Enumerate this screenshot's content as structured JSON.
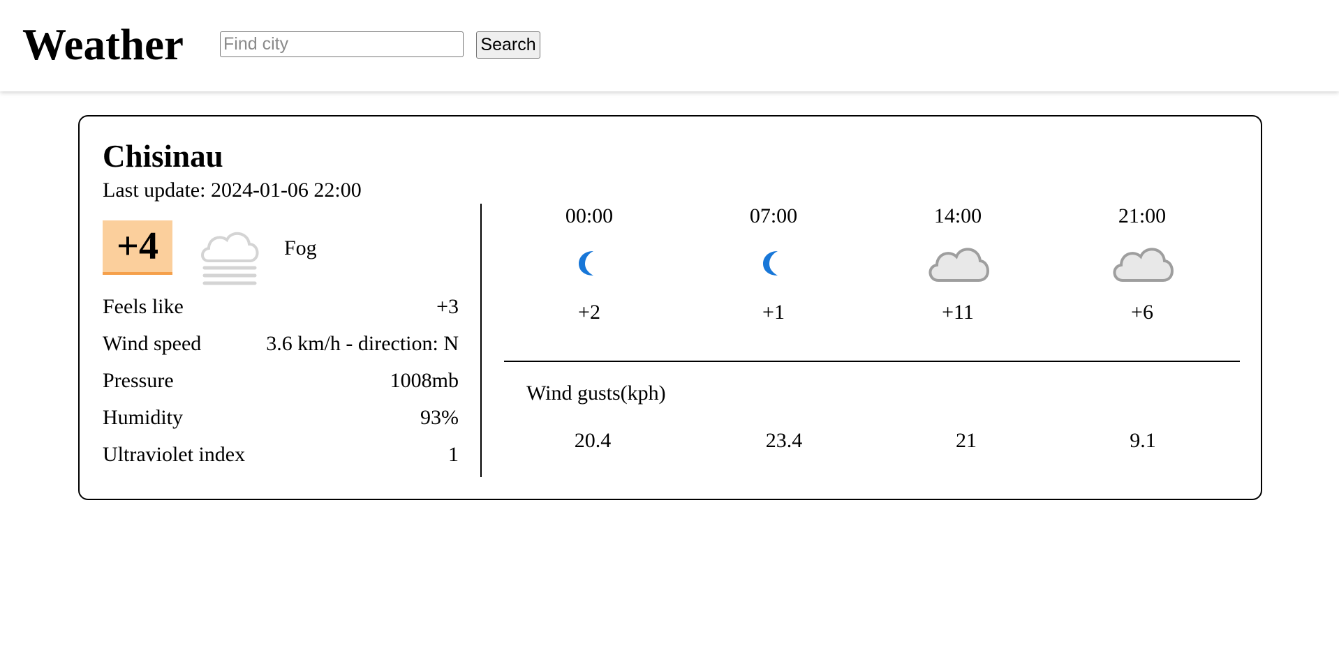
{
  "header": {
    "title": "Weather",
    "search": {
      "placeholder": "Find city",
      "value": ""
    },
    "search_button_label": "Search"
  },
  "current": {
    "city": "Chisinau",
    "last_update": "Last update: 2024-01-06 22:00",
    "temperature": "+4",
    "condition": "Fog",
    "condition_icon": "fog-icon",
    "temperature_badge_color": "#fbcf9c",
    "stats": [
      {
        "label": "Feels like",
        "value": "+3"
      },
      {
        "label": "Wind speed",
        "value": "3.6 km/h - direction: N"
      },
      {
        "label": "Pressure",
        "value": "1008mb"
      },
      {
        "label": "Humidity",
        "value": "93%"
      },
      {
        "label": "Ultraviolet index",
        "value": "1"
      }
    ]
  },
  "forecast": {
    "hours": [
      {
        "time": "00:00",
        "icon": "crescent-moon-icon",
        "temp": "+2"
      },
      {
        "time": "07:00",
        "icon": "crescent-moon-icon",
        "temp": "+1"
      },
      {
        "time": "14:00",
        "icon": "cloud-icon",
        "temp": "+11"
      },
      {
        "time": "21:00",
        "icon": "cloud-icon",
        "temp": "+6"
      }
    ],
    "gusts_label": "Wind gusts(kph)",
    "gusts": [
      "20.4",
      "23.4",
      "21",
      "9.1"
    ]
  }
}
